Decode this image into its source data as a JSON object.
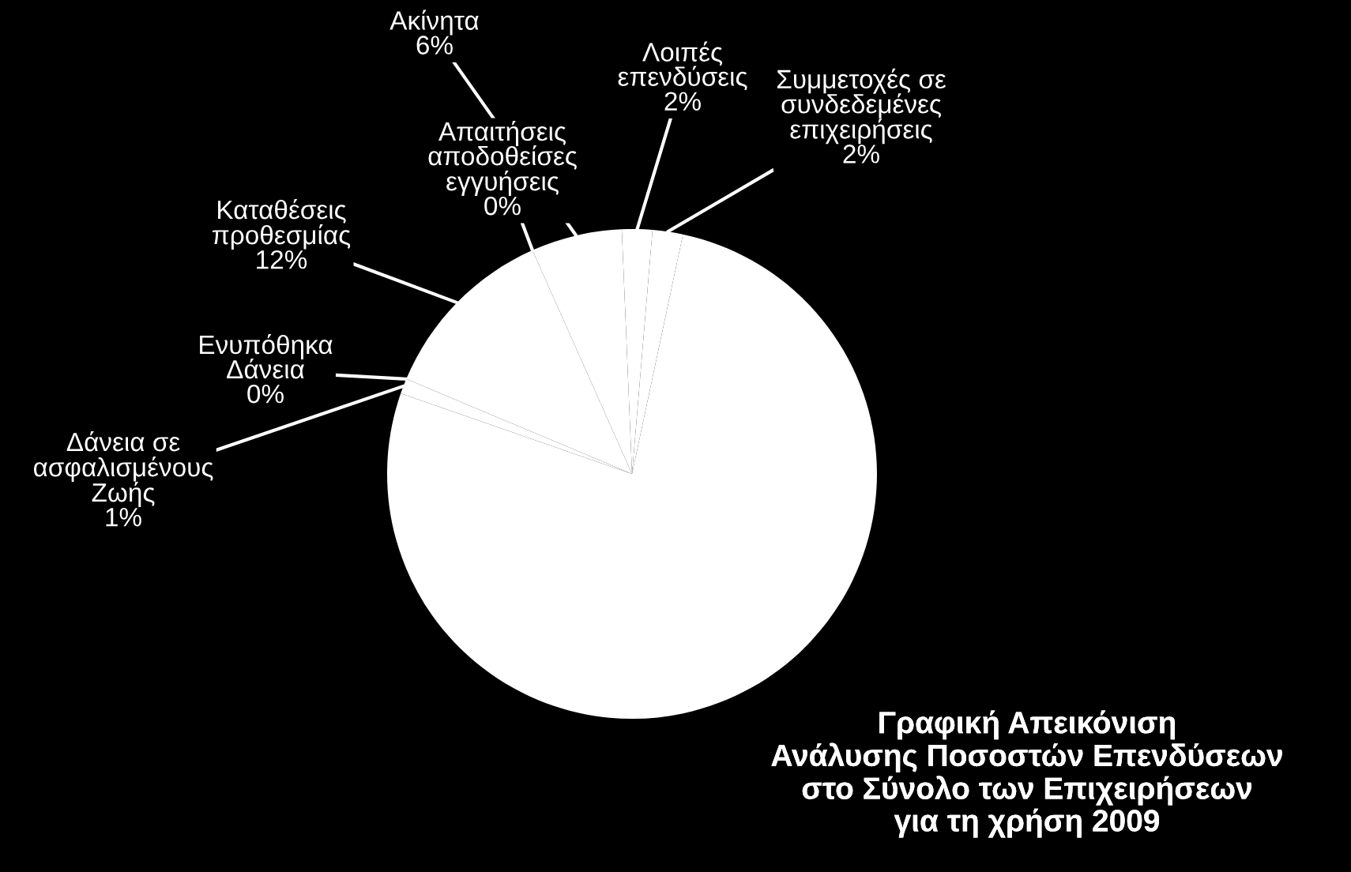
{
  "chart_data": {
    "type": "pie",
    "title": "Γραφική Απεικόνιση\nΑνάλυσης Ποσοστών Επενδύσεων\nστο Σύνολο των Επιχειρήσεων\nγια τη χρήση 2009",
    "categories": [
      "Συμμετοχές σε\nσυνδεδεμένες\nεπιχειρήσεις",
      "Λοιπές\nεπενδύσεις",
      "Ακίνητα",
      "Απαιτήσεις\nαποδοθείσες\nεγγυήσεις",
      "Καταθέσεις\nπροθεσμίας",
      "Ενυπόθηκα\nΔάνεια",
      "Δάνεια σε\nασφαλισμένους\nΖωής",
      null
    ],
    "values": [
      2,
      2,
      6,
      0,
      12,
      0,
      1,
      77
    ],
    "value_labels": [
      "2%",
      "2%",
      "6%",
      "0%",
      "12%",
      "0%",
      "1%",
      null
    ],
    "colors": [
      "#ffffff",
      "#ffffff",
      "#ffffff",
      "#ffffff",
      "#ffffff",
      "#ffffff",
      "#ffffff",
      "#ffffff"
    ],
    "legend": false
  }
}
